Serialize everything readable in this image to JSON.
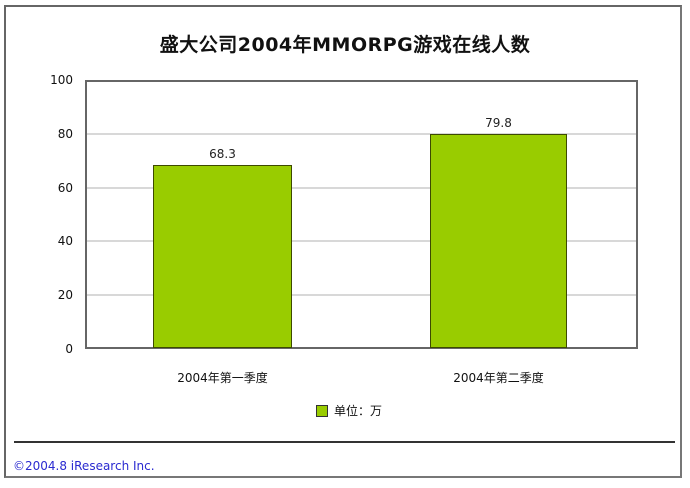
{
  "chart_data": {
    "type": "bar",
    "title": "盛大公司2004年MMORPG游戏在线人数",
    "categories": [
      "2004年第一季度",
      "2004年第二季度"
    ],
    "series": [
      {
        "name": "单位：万",
        "values": [
          68.3,
          79.8
        ],
        "color": "#99cc00"
      }
    ],
    "data_labels": [
      "68.3",
      "79.8"
    ],
    "xlabel": "",
    "ylabel": "",
    "ylim": [
      0,
      100
    ],
    "yticks": [
      0,
      20,
      40,
      60,
      80,
      100
    ],
    "ytick_labels": [
      "0",
      "20",
      "40",
      "60",
      "80",
      "100"
    ],
    "grid": true,
    "legend_position": "bottom",
    "legend": [
      "单位：万"
    ]
  },
  "footer": {
    "copyright": "©2004.8  iResearch Inc."
  },
  "colors": {
    "bar": "#99cc00",
    "footer_text": "#2a2ad0"
  }
}
